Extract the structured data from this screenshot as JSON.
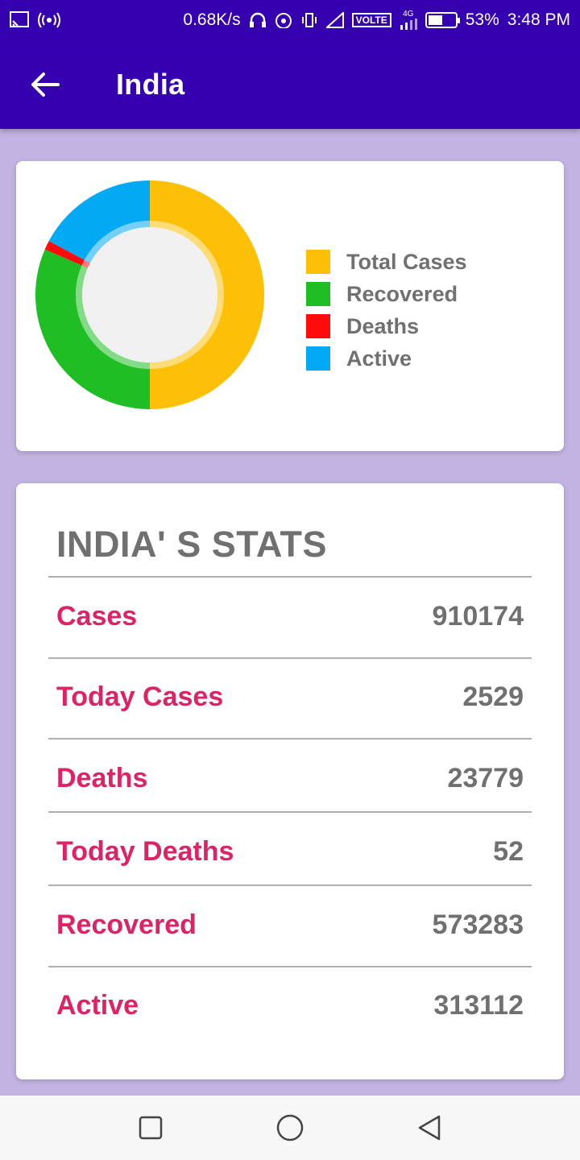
{
  "status_bar": {
    "network_speed": "0.68K/s",
    "volte": "VOLTE",
    "network_type": "4G",
    "battery_percent": "53%",
    "battery_level": 0.53,
    "time": "3:48 PM",
    "color": "#3500b0"
  },
  "app_bar": {
    "title": "India",
    "back_icon": "arrow-back-icon",
    "color": "#3500b0"
  },
  "chart_data": {
    "type": "pie",
    "categories": [
      "Total Cases",
      "Recovered",
      "Deaths",
      "Active"
    ],
    "values": [
      910174,
      573283,
      23779,
      313112
    ],
    "colors": [
      "#fec007",
      "#1fbe25",
      "#fe0b0b",
      "#04a9f4"
    ],
    "legend_placement": "right"
  },
  "legend": {
    "items": [
      {
        "label": "Total Cases",
        "color": "#fec007"
      },
      {
        "label": "Recovered",
        "color": "#1fbe25"
      },
      {
        "label": "Deaths",
        "color": "#fe0b0b"
      },
      {
        "label": "Active",
        "color": "#04a9f4"
      }
    ]
  },
  "stats": {
    "title": "INDIA' S STATS",
    "rows": [
      {
        "label": "Cases",
        "value": "910174"
      },
      {
        "label": "Today Cases",
        "value": "2529"
      },
      {
        "label": "Deaths",
        "value": "23779"
      },
      {
        "label": "Today Deaths",
        "value": "52"
      },
      {
        "label": "Recovered",
        "value": "573283"
      },
      {
        "label": "Active",
        "value": "313112"
      }
    ],
    "label_color": "#dd2366",
    "value_color": "#707070"
  },
  "nav_bar": {
    "recents_icon": "square-recents-icon",
    "home_icon": "circle-home-icon",
    "back_icon": "triangle-back-icon"
  }
}
